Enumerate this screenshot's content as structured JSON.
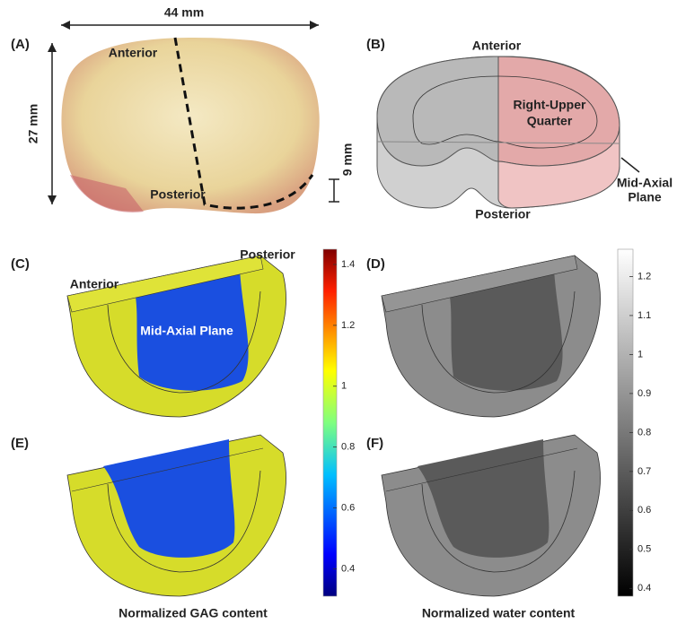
{
  "panels": {
    "a": {
      "label": "(A)",
      "width": "44 mm",
      "height": "27 mm",
      "thickness": "9 mm",
      "anterior": "Anterior",
      "posterior": "Posterior"
    },
    "b": {
      "label": "(B)",
      "anterior": "Anterior",
      "quarter": [
        "Right-Upper",
        "Quarter"
      ],
      "plane": [
        "Mid-Axial",
        "Plane"
      ],
      "posterior": "Posterior"
    },
    "c": {
      "label": "(C)",
      "anterior": "Anterior",
      "posterior": "Posterior",
      "plane": "Mid-Axial Plane"
    },
    "d": {
      "label": "(D)"
    },
    "e": {
      "label": "(E)"
    },
    "f": {
      "label": "(F)"
    }
  },
  "colorbars": [
    {
      "title": "Normalized GAG content",
      "lim": [
        0.31,
        1.45
      ],
      "ticks": [
        0.4,
        0.6,
        0.8,
        1,
        1.2,
        1.4
      ]
    },
    {
      "title": "Normalized water content",
      "lim": [
        0.38,
        1.27
      ],
      "ticks": [
        0.4,
        0.5,
        0.6,
        0.7,
        0.8,
        0.9,
        1,
        1.1,
        1.2
      ]
    }
  ]
}
